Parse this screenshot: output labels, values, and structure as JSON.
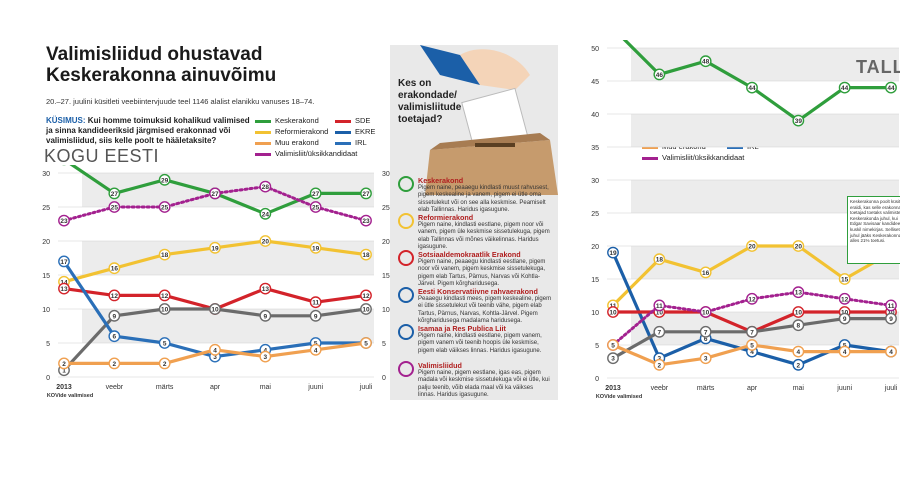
{
  "title": "Valimisliidud ohustavad Keskerakonna ainuvõimu",
  "subtitle": "20.–27. juulini küsitleti veebiintervjuude teel 1146 alalist elanikku vanuses 18–74.",
  "question_label": "KÜSIMUS:",
  "question_text": "Kui homme toimuksid kohalikud valimised ja sinna kandideeriksid järgmised erakonnad või valimisliidud, siis kelle poolt te hääletaksite?",
  "left_heading": "KOGU EESTI",
  "right_heading": "TALL",
  "legend": [
    {
      "name": "Keskerakond",
      "color": "#2f9e3c"
    },
    {
      "name": "SDE",
      "color": "#d3232a"
    },
    {
      "name": "Reformierakond",
      "color": "#f2c232"
    },
    {
      "name": "EKRE",
      "color": "#1b5fa8"
    },
    {
      "name": "Muu erakond",
      "color": "#f0a050"
    },
    {
      "name": "IRL",
      "color": "#2a6fb8"
    },
    {
      "name": "Valimisliit/üksikkandidaat",
      "color": "#a3218f"
    }
  ],
  "middle": {
    "question": "Kes on erakondade/ valimisliitude toetajad?",
    "parties": [
      {
        "name": "Keskerakond",
        "desc": "Pigem naine, peaaegu kindlasti muust rahvusest, pigem keskealine ja vanem, pigem ei ütle oma sissetulekut või on see alla keskmise. Peamiselt elab Tallinnas. Haridus igasugune."
      },
      {
        "name": "Reformierakond",
        "desc": "Pigem naine, kindlasti eestlane, pigem noor või vanem, pigem üle keskmise sissetulekuga, pigem elab Tallinnas või mõnes väikelinnas. Haridus igasugune."
      },
      {
        "name": "Sotsiaaldemokraatlik Erakond",
        "desc": "Pigem naine, peaaegu kindlasti eestlane, pigem noor või vanem, pigem keskmise sissetulekuga, pigem elab Tartus, Pärnus, Narvas või Kohtla-Järvel. Pigem kõrgharidusega."
      },
      {
        "name": "Eesti Konservatiivne rahvaerakond",
        "desc": "Peaaegu kindlasti mees, pigem keskealine, pigem ei ütle sissetulekut või teenib vähe, pigem elab Tartus, Pärnus, Narvas, Kohtla-Järvel. Pigem kõrgharidusega madalama haridusega."
      },
      {
        "name": "Isamaa ja Res Publica Liit",
        "desc": "Pigem naine, kindlasti eestlane, pigem vanem, pigem vanem või teenib hoopis üle keskmise, pigem elab väikses linnas. Haridus igasugune."
      },
      {
        "name": "Valimisliidud",
        "desc": "Pigem naine, pigem eestlane, igas eas, pigem madala või keskmise sissetulekuga või ei ütle, kui palju teenib, võib elada maal või ka väikses linnas. Haridus igasugune."
      }
    ]
  },
  "note": "Keskerakonna poolt küsiti eraldi, kas selle erakonna toetajad toetaks valimistel Keskerakonda juhul, kui Edgar Savisaar kandideeriks kuskil nimekirjas. Selliset juhul jääks Keskerakonna-le alles 21% toetusi.",
  "chart_data": [
    {
      "type": "line",
      "title": "KOGU EESTI",
      "x": [
        "2013 KOVide valimised",
        "veebr",
        "märts",
        "apr",
        "mai",
        "juuni",
        "juuli"
      ],
      "ylim": [
        0,
        30
      ],
      "yticks": [
        0,
        5,
        10,
        15,
        20,
        25,
        30
      ],
      "series": [
        {
          "name": "Keskerakond",
          "color": "#2f9e3c",
          "values": [
            32,
            27,
            29,
            27,
            24,
            27,
            27
          ]
        },
        {
          "name": "Valimisliit/üksikkandidaat",
          "color": "#a3218f",
          "dashed": true,
          "values": [
            23,
            25,
            25,
            27,
            28,
            25,
            23
          ]
        },
        {
          "name": "Reformierakond",
          "color": "#f2c232",
          "values": [
            14,
            16,
            18,
            19,
            20,
            19,
            18
          ]
        },
        {
          "name": "SDE",
          "color": "#d3232a",
          "values": [
            13,
            12,
            12,
            10,
            13,
            11,
            12
          ]
        },
        {
          "name": "EKRE",
          "color": "#6b6b6b",
          "values": [
            1,
            9,
            10,
            10,
            9,
            9,
            10
          ]
        },
        {
          "name": "IRL",
          "color": "#2a6fb8",
          "values": [
            17,
            6,
            5,
            3,
            4,
            5,
            5
          ]
        },
        {
          "name": "Muu erakond",
          "color": "#f0a050",
          "values": [
            2,
            2,
            2,
            4,
            3,
            4,
            5
          ]
        }
      ]
    },
    {
      "type": "line",
      "title": "TALL",
      "x": [
        "2013 KOVide valimised",
        "veebr",
        "märts",
        "apr",
        "mai",
        "juuni",
        "juuli"
      ],
      "ylim": [
        0,
        50
      ],
      "yticks": [
        0,
        5,
        10,
        15,
        20,
        25,
        30,
        35,
        40,
        45,
        50
      ],
      "series": [
        {
          "name": "Keskerakond",
          "color": "#2f9e3c",
          "values": [
            53,
            46,
            48,
            44,
            39,
            44,
            44
          ]
        },
        {
          "name": "Reformierakond",
          "color": "#f2c232",
          "values": [
            11,
            18,
            16,
            20,
            20,
            15,
            19
          ]
        },
        {
          "name": "EKRE",
          "color": "#1b5fa8",
          "values": [
            19,
            3,
            6,
            4,
            2,
            5,
            4
          ]
        },
        {
          "name": "SDE",
          "color": "#d3232a",
          "values": [
            10,
            10,
            10,
            7,
            10,
            10,
            10
          ]
        },
        {
          "name": "Valimisliit/üksikkandidaat",
          "color": "#a3218f",
          "dashed": true,
          "values": [
            5,
            11,
            10,
            12,
            13,
            12,
            11
          ]
        },
        {
          "name": "IRL",
          "color": "#6b6b6b",
          "values": [
            3,
            7,
            7,
            7,
            8,
            9,
            9
          ]
        },
        {
          "name": "Muu erakond",
          "color": "#f0a050",
          "values": [
            5,
            2,
            3,
            5,
            4,
            4,
            4
          ]
        }
      ]
    }
  ]
}
